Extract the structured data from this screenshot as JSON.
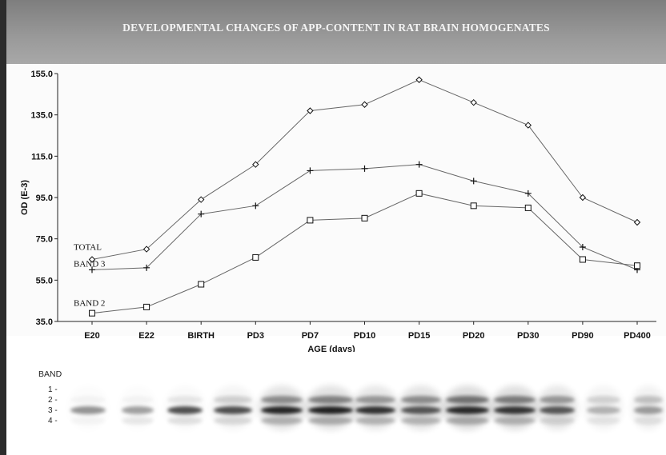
{
  "chart_data": {
    "type": "line",
    "title": "DEVELOPMENTAL CHANGES OF APP-CONTENT IN RAT BRAIN HOMOGENATES",
    "xlabel": "AGE (days)",
    "ylabel": "OD (E-3)",
    "categories": [
      "E20",
      "E22",
      "BIRTH",
      "PD3",
      "PD7",
      "PD10",
      "PD15",
      "PD20",
      "PD30",
      "PD90",
      "PD400"
    ],
    "ylim": [
      35,
      155
    ],
    "yticks": [
      "35.0",
      "55.0",
      "75.0",
      "95.0",
      "115.0",
      "135.0",
      "155.0"
    ],
    "grid": false,
    "series": [
      {
        "name": "TOTAL",
        "marker": "diamond",
        "values": [
          65,
          70,
          94,
          111,
          137,
          140,
          152,
          141,
          130,
          95,
          83
        ]
      },
      {
        "name": "BAND 3",
        "marker": "plus",
        "values": [
          60,
          61,
          87,
          91,
          108,
          109,
          111,
          103,
          97,
          71,
          60
        ]
      },
      {
        "name": "BAND 2",
        "marker": "square",
        "values": [
          39,
          42,
          53,
          66,
          84,
          85,
          97,
          91,
          90,
          65,
          62
        ]
      }
    ]
  },
  "blot": {
    "label": "BAND",
    "band_markers": [
      "1 -",
      "2 -",
      "3 -",
      "4 -"
    ]
  }
}
